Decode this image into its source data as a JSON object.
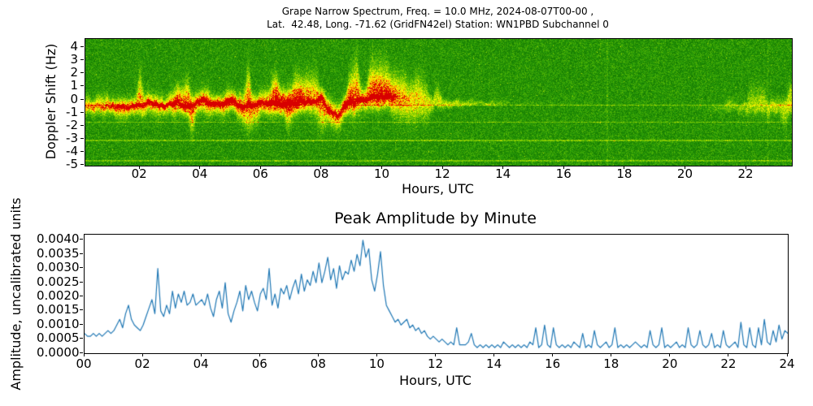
{
  "spectrogram": {
    "title_line1": "Grape Narrow Spectrum, Freq. = 10.0 MHz, 2024-08-07T00-00 ,",
    "title_line2": "Lat.  42.48, Long. -71.62 (GridFN42el) Station: WN1PBD Subchannel 0",
    "xlabel": "Hours, UTC",
    "ylabel": "Doppler Shift (Hz)",
    "xtick_labels": [
      "02",
      "04",
      "06",
      "08",
      "10",
      "12",
      "14",
      "16",
      "18",
      "20",
      "22"
    ],
    "xtick_hours": [
      2,
      4,
      6,
      8,
      10,
      12,
      14,
      16,
      18,
      20,
      22
    ],
    "ytick_labels": [
      "4",
      "3",
      "2",
      "1",
      "0",
      "-1",
      "-2",
      "-3",
      "-4",
      "-5"
    ],
    "ytick_values": [
      4,
      3,
      2,
      1,
      0,
      -1,
      -2,
      -3,
      -4,
      -5
    ]
  },
  "amplitude": {
    "title": "Peak Amplitude by Minute",
    "xlabel": "Hours, UTC",
    "ylabel": "Amplitude, uncalibrated units",
    "xtick_labels": [
      "00",
      "02",
      "04",
      "06",
      "08",
      "10",
      "12",
      "14",
      "16",
      "18",
      "20",
      "22",
      "24"
    ],
    "xtick_hours": [
      0,
      2,
      4,
      6,
      8,
      10,
      12,
      14,
      16,
      18,
      20,
      22,
      24
    ],
    "ytick_labels": [
      "0.0000",
      "0.0005",
      "0.0010",
      "0.0015",
      "0.0020",
      "0.0025",
      "0.0030",
      "0.0035",
      "0.0040"
    ],
    "ytick_values": [
      0.0,
      0.0005,
      0.001,
      0.0015,
      0.002,
      0.0025,
      0.003,
      0.0035,
      0.004
    ]
  },
  "chart_data": [
    {
      "type": "heatmap",
      "subtype": "doppler-spectrogram",
      "title": "Grape Narrow Spectrum, Freq. = 10.0 MHz, 2024-08-07T00-00 , Lat. 42.48, Long. -71.62 (GridFN42el) Station: WN1PBD Subchannel 0",
      "xlabel": "Hours, UTC",
      "ylabel": "Doppler Shift (Hz)",
      "x_range_hours": [
        0.2,
        23.5
      ],
      "y_range_hz": [
        -5.03,
        4.66
      ],
      "grid": false,
      "colormap_stops": [
        [
          0.0,
          "#0d6e00"
        ],
        [
          0.25,
          "#2da008"
        ],
        [
          0.45,
          "#78c800"
        ],
        [
          0.62,
          "#d2eb00"
        ],
        [
          0.75,
          "#ffff00"
        ],
        [
          0.85,
          "#ffa000"
        ],
        [
          0.95,
          "#ff3c00"
        ],
        [
          1.0,
          "#d70000"
        ]
      ],
      "background_description": "speckled green noise floor",
      "artifact_hlines_hz": [
        -0.4,
        -1.7,
        -3.1,
        -4.65
      ],
      "artifact_vlines_hours": [
        9.67,
        17.4,
        22.7
      ],
      "trace_keyframes_format": [
        "hours_utc",
        "center_hz",
        "halfwidth_hz",
        "intensity_0_to_1"
      ],
      "trace_keyframes": [
        [
          0.2,
          -0.55,
          0.45,
          0.7
        ],
        [
          0.8,
          -0.55,
          0.5,
          0.78
        ],
        [
          1.4,
          -0.5,
          0.55,
          0.82
        ],
        [
          2.0,
          -0.45,
          0.6,
          0.88
        ],
        [
          2.4,
          -0.25,
          0.65,
          0.95
        ],
        [
          2.8,
          -0.45,
          0.6,
          0.9
        ],
        [
          3.2,
          -0.15,
          0.7,
          1.0
        ],
        [
          3.6,
          -0.5,
          0.6,
          0.9
        ],
        [
          4.1,
          -0.1,
          0.7,
          1.0
        ],
        [
          4.5,
          -0.4,
          0.6,
          0.92
        ],
        [
          5.0,
          -0.1,
          0.65,
          1.0
        ],
        [
          5.4,
          -0.55,
          0.6,
          0.9
        ],
        [
          6.0,
          -0.35,
          0.7,
          0.95
        ],
        [
          6.5,
          -0.15,
          0.75,
          1.0
        ],
        [
          7.0,
          -0.35,
          0.7,
          0.95
        ],
        [
          7.5,
          -0.1,
          0.75,
          1.0
        ],
        [
          8.0,
          0.0,
          0.7,
          1.0
        ],
        [
          8.25,
          -0.9,
          0.75,
          0.9
        ],
        [
          8.5,
          -1.35,
          0.65,
          0.85
        ],
        [
          8.75,
          -0.5,
          0.7,
          0.95
        ],
        [
          9.0,
          -0.15,
          0.7,
          1.0
        ],
        [
          9.4,
          0.05,
          0.75,
          1.0
        ],
        [
          9.8,
          0.25,
          0.8,
          1.0
        ],
        [
          10.2,
          0.3,
          0.7,
          0.97
        ],
        [
          10.5,
          0.05,
          0.55,
          0.75
        ],
        [
          10.8,
          -0.05,
          0.5,
          0.62
        ],
        [
          11.2,
          -0.1,
          0.5,
          0.55
        ],
        [
          11.6,
          -0.2,
          0.4,
          0.48
        ],
        [
          12.0,
          -0.25,
          0.3,
          0.42
        ],
        [
          12.5,
          -0.3,
          0.18,
          0.38
        ],
        [
          13.0,
          -0.3,
          0.12,
          0.34
        ],
        [
          13.5,
          -0.3,
          0.09,
          0.28
        ],
        [
          13.8,
          -0.3,
          0.07,
          0.18
        ],
        [
          14.2,
          -0.3,
          0.07,
          0.1
        ],
        [
          15.0,
          -0.3,
          0.07,
          0.07
        ],
        [
          16.0,
          -0.35,
          0.07,
          0.05
        ],
        [
          17.5,
          -0.4,
          0.08,
          0.03
        ],
        [
          19.0,
          -0.45,
          0.08,
          0.02
        ],
        [
          20.8,
          -0.5,
          0.15,
          0.08
        ],
        [
          21.4,
          -0.55,
          0.3,
          0.28
        ],
        [
          22.0,
          -0.6,
          0.38,
          0.36
        ],
        [
          22.6,
          -0.5,
          0.45,
          0.46
        ],
        [
          23.1,
          -0.6,
          0.5,
          0.55
        ],
        [
          23.5,
          -0.5,
          0.5,
          0.6
        ]
      ]
    },
    {
      "type": "line",
      "title": "Peak Amplitude by Minute",
      "xlabel": "Hours, UTC",
      "ylabel": "Amplitude, uncalibrated units",
      "color": "#1f77b4",
      "grid": false,
      "xlim": [
        0,
        24
      ],
      "ylim": [
        0,
        0.0042
      ],
      "x_start_hours": 0,
      "x_step_hours": 0.1,
      "values": [
        0.0007,
        0.0006,
        0.0006,
        0.0007,
        0.0006,
        0.0007,
        0.0006,
        0.0007,
        0.0008,
        0.0007,
        0.0008,
        0.001,
        0.0012,
        0.0009,
        0.0014,
        0.0017,
        0.0012,
        0.001,
        0.0009,
        0.0008,
        0.001,
        0.0013,
        0.0016,
        0.0019,
        0.0014,
        0.003,
        0.0015,
        0.0013,
        0.0017,
        0.0014,
        0.0022,
        0.0016,
        0.0021,
        0.0018,
        0.0022,
        0.0017,
        0.0018,
        0.0021,
        0.0017,
        0.0018,
        0.0019,
        0.0017,
        0.0021,
        0.0016,
        0.0013,
        0.0019,
        0.0022,
        0.0016,
        0.0025,
        0.0014,
        0.0011,
        0.0015,
        0.0018,
        0.0022,
        0.0015,
        0.0024,
        0.0019,
        0.0022,
        0.0018,
        0.0015,
        0.0021,
        0.0023,
        0.0019,
        0.003,
        0.0017,
        0.0021,
        0.0016,
        0.0023,
        0.0021,
        0.0024,
        0.0019,
        0.0023,
        0.0026,
        0.0021,
        0.0028,
        0.0022,
        0.0026,
        0.0024,
        0.0029,
        0.0025,
        0.0032,
        0.0025,
        0.0029,
        0.0034,
        0.0026,
        0.003,
        0.0023,
        0.0031,
        0.0026,
        0.0029,
        0.0028,
        0.0033,
        0.0029,
        0.0035,
        0.0031,
        0.004,
        0.0034,
        0.0037,
        0.0026,
        0.0022,
        0.0028,
        0.0036,
        0.0024,
        0.0017,
        0.0015,
        0.0013,
        0.0011,
        0.0012,
        0.001,
        0.0011,
        0.0012,
        0.0009,
        0.001,
        0.0008,
        0.0009,
        0.0007,
        0.0008,
        0.0006,
        0.0005,
        0.0006,
        0.0005,
        0.0004,
        0.0005,
        0.0004,
        0.0003,
        0.0004,
        0.0003,
        0.0009,
        0.0003,
        0.0003,
        0.0003,
        0.0004,
        0.0007,
        0.0003,
        0.0002,
        0.0003,
        0.0002,
        0.0003,
        0.0002,
        0.0003,
        0.0002,
        0.0003,
        0.0002,
        0.0004,
        0.0003,
        0.0002,
        0.0003,
        0.0002,
        0.0003,
        0.0002,
        0.0003,
        0.0002,
        0.0004,
        0.0003,
        0.0009,
        0.0002,
        0.0003,
        0.001,
        0.0003,
        0.0002,
        0.0009,
        0.0003,
        0.0002,
        0.0003,
        0.0002,
        0.0003,
        0.0002,
        0.0004,
        0.0003,
        0.0002,
        0.0007,
        0.0002,
        0.0003,
        0.0002,
        0.0008,
        0.0003,
        0.0002,
        0.0003,
        0.0004,
        0.0002,
        0.0003,
        0.0009,
        0.0002,
        0.0003,
        0.0002,
        0.0003,
        0.0002,
        0.0003,
        0.0004,
        0.0003,
        0.0002,
        0.0003,
        0.0002,
        0.0008,
        0.0003,
        0.0002,
        0.0003,
        0.0009,
        0.0002,
        0.0003,
        0.0002,
        0.0003,
        0.0004,
        0.0002,
        0.0003,
        0.0002,
        0.0009,
        0.0003,
        0.0002,
        0.0003,
        0.0008,
        0.0003,
        0.0002,
        0.0003,
        0.0007,
        0.0002,
        0.0003,
        0.0002,
        0.0008,
        0.0003,
        0.0002,
        0.0003,
        0.0004,
        0.0002,
        0.0011,
        0.0003,
        0.0002,
        0.0009,
        0.0003,
        0.0002,
        0.0009,
        0.0003,
        0.0012,
        0.0004,
        0.0003,
        0.0008,
        0.0004,
        0.001,
        0.0005,
        0.0008,
        0.0007
      ]
    }
  ]
}
